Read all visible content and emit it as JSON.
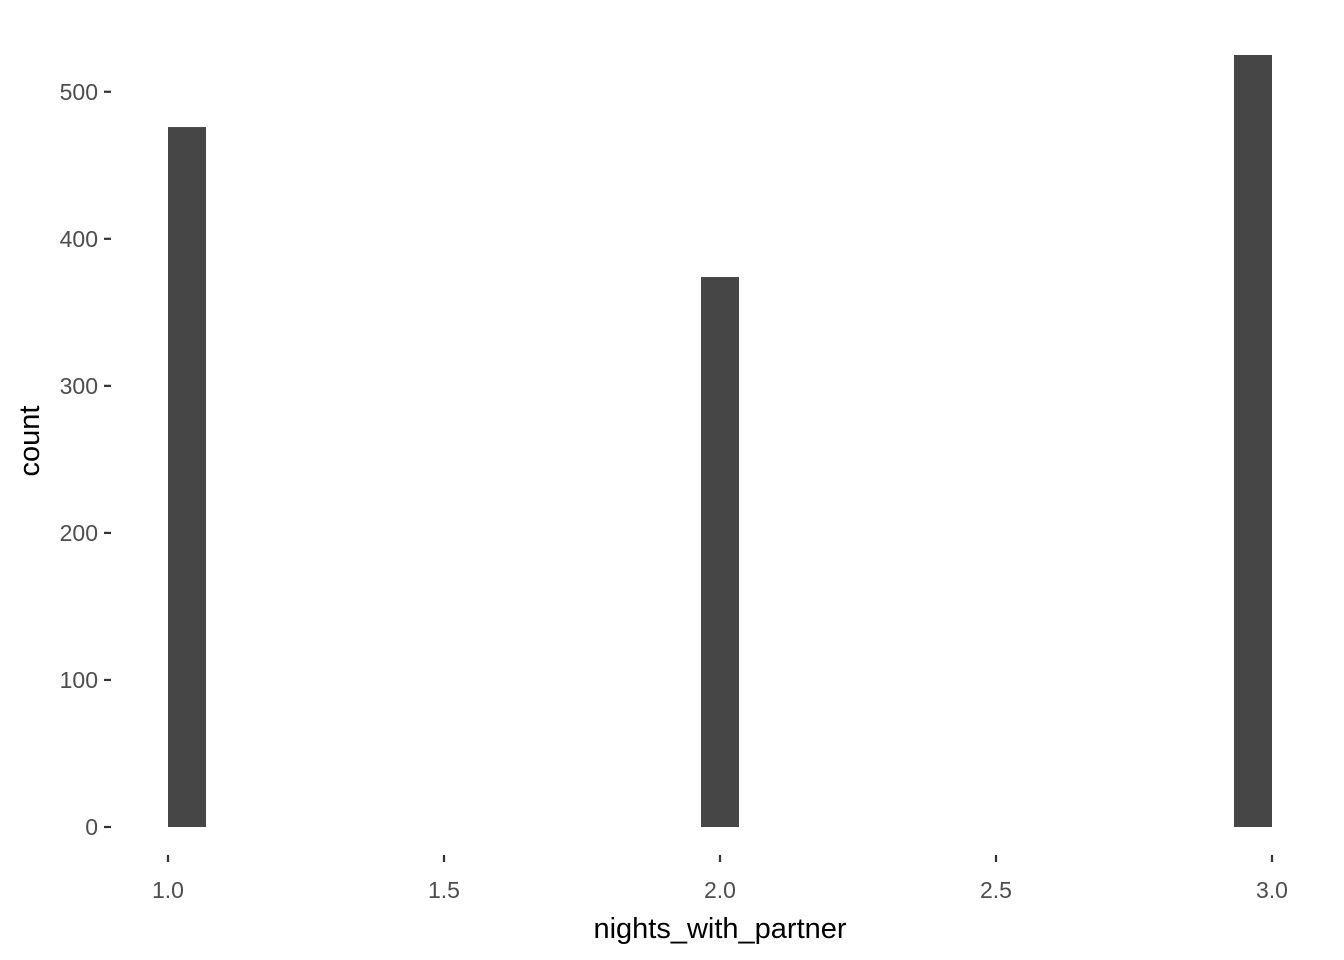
{
  "chart_data": {
    "type": "bar",
    "title": "",
    "xlabel": "nights_with_partner",
    "ylabel": "count",
    "x": [
      1.0,
      2.0,
      3.0
    ],
    "values": [
      476,
      374,
      525
    ],
    "xlim": [
      1.0,
      3.0
    ],
    "ylim": [
      0,
      525
    ],
    "x_ticks": [
      1.0,
      1.5,
      2.0,
      2.5,
      3.0
    ],
    "x_tick_labels": [
      "1.0",
      "1.5",
      "2.0",
      "2.5",
      "3.0"
    ],
    "y_ticks": [
      0,
      100,
      200,
      300,
      400,
      500
    ],
    "y_tick_labels": [
      "0",
      "100",
      "200",
      "300",
      "400",
      "500"
    ],
    "grid": false,
    "bar_color": "#464646",
    "background": "#ffffff"
  }
}
